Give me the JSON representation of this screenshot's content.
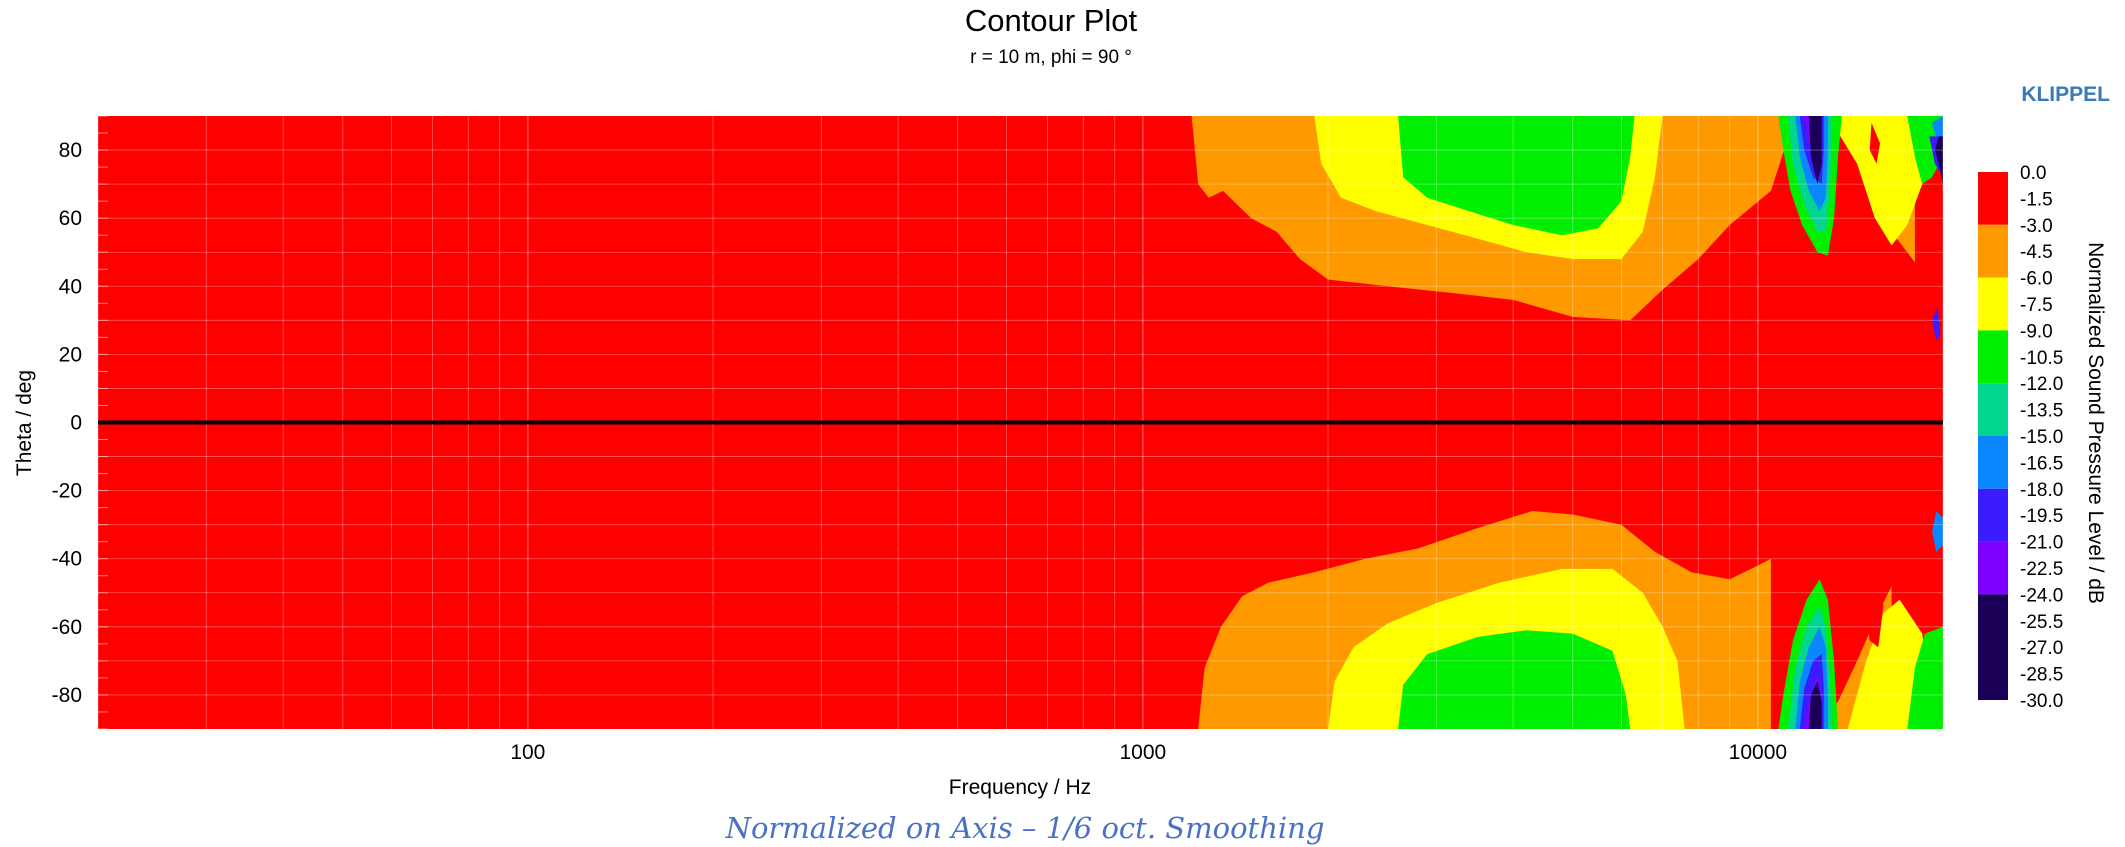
{
  "brand": "KLIPPEL",
  "caption": "Normalized on Axis – 1/6 oct. Smoothing",
  "chart_data": {
    "type": "heatmap",
    "title": "Contour Plot",
    "subtitle": "r = 10 m, phi = 90 °",
    "xlabel": "Frequency / Hz",
    "ylabel": "Theta / deg",
    "x_scale": "log",
    "xlim": [
      20,
      20000
    ],
    "ylim": [
      -90,
      90
    ],
    "x_ticks": [
      100,
      1000,
      10000
    ],
    "x_tick_labels": [
      "100",
      "1000",
      "10000"
    ],
    "y_ticks": [
      80,
      60,
      40,
      20,
      0,
      -20,
      -40,
      -60,
      -80
    ],
    "y_tick_labels": [
      "80",
      "60",
      "40",
      "20",
      "0",
      "-20",
      "-40",
      "-60",
      "-80"
    ],
    "grid": true,
    "reference_line_theta": 0,
    "colorbar": {
      "label": "Normalized Sound Pressure Level / dB",
      "levels": [
        "0.0",
        "-1.5",
        "-3.0",
        "-4.5",
        "-6.0",
        "-7.5",
        "-9.0",
        "-10.5",
        "-12.0",
        "-13.5",
        "-15.0",
        "-16.5",
        "-18.0",
        "-19.5",
        "-21.0",
        "-22.5",
        "-24.0",
        "-25.5",
        "-27.0",
        "-28.5",
        "-30.0"
      ],
      "bands": [
        {
          "from": 0,
          "to": -3,
          "color": "#ff0000"
        },
        {
          "from": -3,
          "to": -6,
          "color": "#ff9900"
        },
        {
          "from": -6,
          "to": -9,
          "color": "#ffff00"
        },
        {
          "from": -9,
          "to": -12,
          "color": "#00ee00"
        },
        {
          "from": -12,
          "to": -15,
          "color": "#00d68f"
        },
        {
          "from": -15,
          "to": -18,
          "color": "#0a86ff"
        },
        {
          "from": -18,
          "to": -21,
          "color": "#3a1cff"
        },
        {
          "from": -21,
          "to": -24,
          "color": "#8000ff"
        },
        {
          "from": -24,
          "to": -30,
          "color": "#1a0057"
        }
      ]
    },
    "contours": [
      {
        "level": -3,
        "color": "#ff9900",
        "polygons": [
          [
            [
              1200,
              90
            ],
            [
              1230,
              70
            ],
            [
              1280,
              66
            ],
            [
              1350,
              68
            ],
            [
              1500,
              60
            ],
            [
              1650,
              56
            ],
            [
              1800,
              48
            ],
            [
              2000,
              42
            ],
            [
              2500,
              40
            ],
            [
              3200,
              38
            ],
            [
              4000,
              36
            ],
            [
              5000,
              31
            ],
            [
              6200,
              30
            ],
            [
              7000,
              39
            ],
            [
              8000,
              48
            ],
            [
              9000,
              58
            ],
            [
              10500,
              68
            ],
            [
              11500,
              90
            ]
          ],
          [
            [
              1230,
              -90
            ],
            [
              1260,
              -72
            ],
            [
              1340,
              -60
            ],
            [
              1450,
              -51
            ],
            [
              1600,
              -47
            ],
            [
              1900,
              -44
            ],
            [
              2300,
              -40
            ],
            [
              2800,
              -37
            ],
            [
              3500,
              -31
            ],
            [
              4300,
              -26
            ],
            [
              5000,
              -27
            ],
            [
              6000,
              -30
            ],
            [
              6800,
              -38
            ],
            [
              7800,
              -44
            ],
            [
              9000,
              -46
            ],
            [
              10000,
              -42
            ],
            [
              10500,
              -40
            ],
            [
              10500,
              -90
            ]
          ],
          [
            [
              11500,
              90
            ],
            [
              13500,
              90
            ],
            [
              14500,
              82
            ],
            [
              15500,
              68
            ],
            [
              16500,
              56
            ],
            [
              18000,
              47
            ],
            [
              18000,
              90
            ]
          ],
          [
            [
              12500,
              -90
            ],
            [
              13500,
              -82
            ],
            [
              14500,
              -70
            ],
            [
              15500,
              -58
            ],
            [
              16500,
              -48
            ],
            [
              16500,
              -90
            ]
          ]
        ]
      },
      {
        "level": -6,
        "color": "#ffff00",
        "polygons": [
          [
            [
              1900,
              90
            ],
            [
              1950,
              76
            ],
            [
              2100,
              66
            ],
            [
              2400,
              62
            ],
            [
              2900,
              58
            ],
            [
              3500,
              54
            ],
            [
              4200,
              50
            ],
            [
              5000,
              48
            ],
            [
              6000,
              48
            ],
            [
              6500,
              56
            ],
            [
              6800,
              72
            ],
            [
              7000,
              90
            ]
          ],
          [
            [
              2000,
              -90
            ],
            [
              2050,
              -76
            ],
            [
              2200,
              -66
            ],
            [
              2500,
              -59
            ],
            [
              3000,
              -53
            ],
            [
              3800,
              -47
            ],
            [
              4800,
              -43
            ],
            [
              5800,
              -43
            ],
            [
              6500,
              -50
            ],
            [
              7000,
              -60
            ],
            [
              7400,
              -70
            ],
            [
              7600,
              -90
            ]
          ],
          [
            [
              13000,
              90
            ],
            [
              14500,
              76
            ],
            [
              15500,
              60
            ],
            [
              16500,
              52
            ],
            [
              17500,
              58
            ],
            [
              18500,
              70
            ],
            [
              19000,
              90
            ]
          ],
          [
            [
              14000,
              -90
            ],
            [
              15000,
              -70
            ],
            [
              16000,
              -56
            ],
            [
              17000,
              -52
            ],
            [
              18500,
              -62
            ],
            [
              19500,
              -90
            ]
          ]
        ]
      },
      {
        "level": -9,
        "color": "#00ee00",
        "polygons": [
          [
            [
              2600,
              90
            ],
            [
              2650,
              72
            ],
            [
              2900,
              66
            ],
            [
              3400,
              62
            ],
            [
              4000,
              58
            ],
            [
              4800,
              55
            ],
            [
              5500,
              57
            ],
            [
              6000,
              65
            ],
            [
              6200,
              78
            ],
            [
              6300,
              90
            ]
          ],
          [
            [
              2600,
              -90
            ],
            [
              2650,
              -77
            ],
            [
              2900,
              -68
            ],
            [
              3500,
              -63
            ],
            [
              4200,
              -61
            ],
            [
              5000,
              -62
            ],
            [
              5800,
              -67
            ],
            [
              6100,
              -80
            ],
            [
              6200,
              -90
            ]
          ],
          [
            [
              10800,
              90
            ],
            [
              11000,
              80
            ],
            [
              11300,
              68
            ],
            [
              11800,
              58
            ],
            [
              12500,
              50
            ],
            [
              13000,
              49
            ],
            [
              13300,
              60
            ],
            [
              13500,
              78
            ],
            [
              13700,
              90
            ]
          ],
          [
            [
              10800,
              -90
            ],
            [
              11000,
              -80
            ],
            [
              11400,
              -64
            ],
            [
              12000,
              -52
            ],
            [
              12600,
              -46
            ],
            [
              13000,
              -52
            ],
            [
              13300,
              -70
            ],
            [
              13500,
              -90
            ]
          ],
          [
            [
              17500,
              90
            ],
            [
              18000,
              78
            ],
            [
              18500,
              70
            ],
            [
              19200,
              72
            ],
            [
              20000,
              78
            ],
            [
              20000,
              90
            ]
          ],
          [
            [
              17500,
              -90
            ],
            [
              18000,
              -72
            ],
            [
              18700,
              -62
            ],
            [
              20000,
              -60
            ],
            [
              20000,
              -90
            ]
          ]
        ]
      },
      {
        "level": -12,
        "color": "#00d68f",
        "polygons": [
          [
            [
              11200,
              90
            ],
            [
              11400,
              76
            ],
            [
              11900,
              64
            ],
            [
              12500,
              56
            ],
            [
              12900,
              56
            ],
            [
              13100,
              68
            ],
            [
              13200,
              90
            ]
          ],
          [
            [
              11200,
              -90
            ],
            [
              11500,
              -72
            ],
            [
              12000,
              -60
            ],
            [
              12600,
              -54
            ],
            [
              12900,
              -60
            ],
            [
              13100,
              -76
            ],
            [
              13200,
              -90
            ]
          ]
        ]
      },
      {
        "level": -15,
        "color": "#0a86ff",
        "polygons": [
          [
            [
              11500,
              90
            ],
            [
              11700,
              78
            ],
            [
              12100,
              68
            ],
            [
              12600,
              62
            ],
            [
              12900,
              66
            ],
            [
              13000,
              80
            ],
            [
              13000,
              90
            ]
          ],
          [
            [
              11500,
              -90
            ],
            [
              11700,
              -76
            ],
            [
              12100,
              -66
            ],
            [
              12600,
              -60
            ],
            [
              12900,
              -66
            ],
            [
              13000,
              -80
            ],
            [
              13000,
              -90
            ]
          ],
          [
            [
              19200,
              88
            ],
            [
              19600,
              82
            ],
            [
              20000,
              84
            ],
            [
              20000,
              90
            ]
          ],
          [
            [
              19200,
              -32
            ],
            [
              19500,
              -26
            ],
            [
              20000,
              -28
            ],
            [
              20000,
              -36
            ],
            [
              19500,
              -38
            ]
          ]
        ]
      },
      {
        "level": -18,
        "color": "#3a1cff",
        "polygons": [
          [
            [
              11700,
              90
            ],
            [
              11900,
              80
            ],
            [
              12300,
              72
            ],
            [
              12700,
              70
            ],
            [
              12800,
              80
            ],
            [
              12800,
              90
            ]
          ],
          [
            [
              11700,
              -90
            ],
            [
              11900,
              -78
            ],
            [
              12300,
              -70
            ],
            [
              12700,
              -68
            ],
            [
              12800,
              -78
            ],
            [
              12800,
              -90
            ]
          ],
          [
            [
              19000,
              84
            ],
            [
              19400,
              76
            ],
            [
              20000,
              72
            ],
            [
              20000,
              84
            ]
          ],
          [
            [
              19200,
              30
            ],
            [
              19500,
              24
            ],
            [
              19800,
              26
            ],
            [
              19600,
              34
            ]
          ]
        ]
      },
      {
        "level": -21,
        "color": "#8000ff",
        "polygons": [
          [
            [
              11900,
              90
            ],
            [
              12100,
              82
            ],
            [
              12500,
              76
            ],
            [
              12700,
              82
            ],
            [
              12700,
              90
            ]
          ],
          [
            [
              11900,
              -90
            ],
            [
              12100,
              -82
            ],
            [
              12500,
              -74
            ],
            [
              12700,
              -80
            ],
            [
              12700,
              -90
            ]
          ]
        ]
      },
      {
        "level": -24,
        "color": "#1a0057",
        "polygons": [
          [
            [
              12100,
              90
            ],
            [
              12200,
              78
            ],
            [
              12500,
              70
            ],
            [
              12700,
              76
            ],
            [
              12700,
              90
            ]
          ],
          [
            [
              12100,
              -90
            ],
            [
              12200,
              -80
            ],
            [
              12500,
              -76
            ],
            [
              12700,
              -82
            ],
            [
              12700,
              -90
            ]
          ],
          [
            [
              19400,
              80
            ],
            [
              19800,
              74
            ],
            [
              20000,
              70
            ],
            [
              20000,
              84
            ],
            [
              19700,
              84
            ]
          ]
        ]
      }
    ],
    "red_islands": [
      {
        "polygon": [
          [
            15000,
            -38
          ],
          [
            15600,
            -42
          ],
          [
            16000,
            -54
          ],
          [
            15700,
            -66
          ],
          [
            15200,
            -64
          ],
          [
            14900,
            -52
          ]
        ]
      },
      {
        "polygon": [
          [
            15300,
            88
          ],
          [
            15800,
            82
          ],
          [
            15600,
            76
          ],
          [
            15200,
            80
          ]
        ]
      }
    ]
  }
}
